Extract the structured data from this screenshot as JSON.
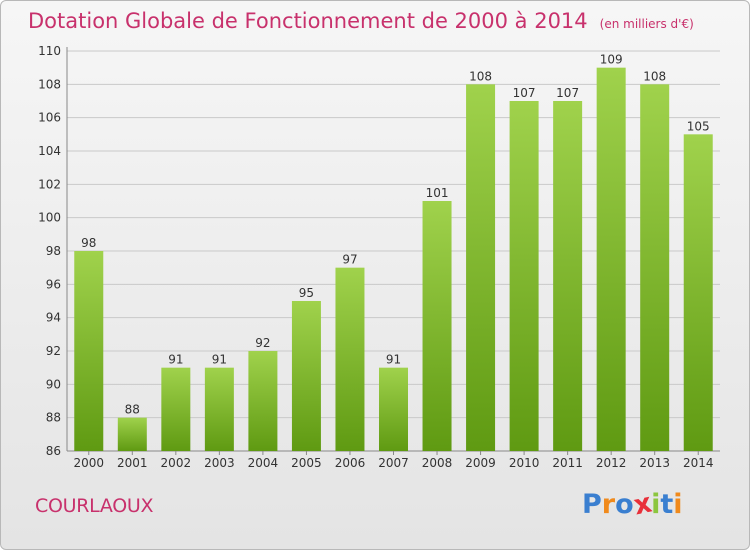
{
  "title": "Dotation Globale de Fonctionnement de 2000 à 2014",
  "unit_note": "(en milliers d'€)",
  "commune": "COURLAOUX",
  "brand": {
    "text": "Proxiti",
    "letter_colors": [
      "#3a7fd0",
      "#f08a1c",
      "#3a7fd0",
      "#e8303a",
      "#8cc63f",
      "#3a7fd0",
      "#f08a1c"
    ]
  },
  "colors": {
    "title": "#c8316c",
    "bar_top": "#a0d24c",
    "bar_bottom": "#5f9a12",
    "grid": "#c9c9c9"
  },
  "chart_data": {
    "type": "bar",
    "title": "Dotation Globale de Fonctionnement de 2000 à 2014",
    "subtitle": "(en milliers d'€)",
    "categories": [
      "2000",
      "2001",
      "2002",
      "2003",
      "2004",
      "2005",
      "2006",
      "2007",
      "2008",
      "2009",
      "2010",
      "2011",
      "2012",
      "2013",
      "2014"
    ],
    "values": [
      98,
      88,
      91,
      91,
      92,
      95,
      97,
      91,
      101,
      108,
      107,
      107,
      109,
      108,
      105
    ],
    "xlabel": "",
    "ylabel": "",
    "ylim": [
      86,
      110
    ],
    "yticks": [
      86,
      88,
      90,
      92,
      94,
      96,
      98,
      100,
      102,
      104,
      106,
      108,
      110
    ],
    "grid": true,
    "data_labels": true
  }
}
